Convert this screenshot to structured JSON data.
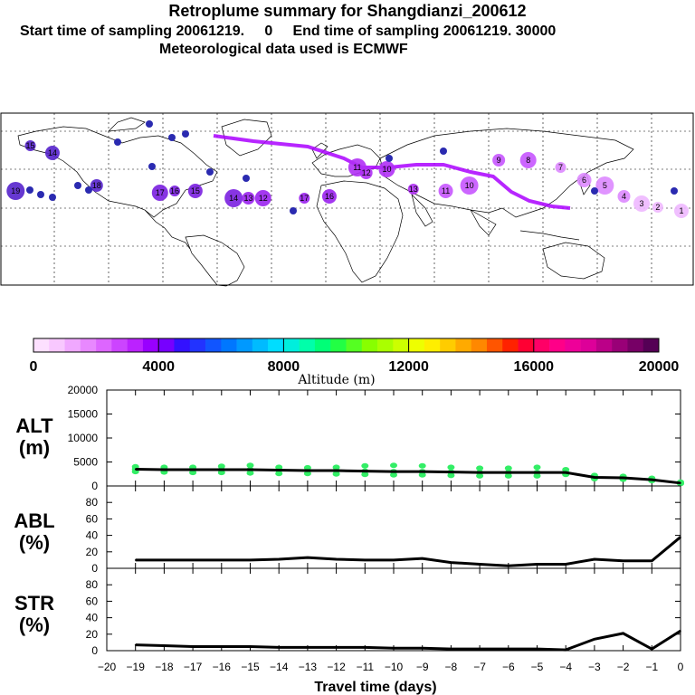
{
  "title": "Retroplume summary for Shangdianzi_200612",
  "subtitle": "Start time of sampling 20061219.     0     End time of sampling 20061219. 30000",
  "met_note": "Meteorological data used is ECMWF",
  "colors": {
    "trajectory": "#aa00ff",
    "line": "#000000",
    "alt_dots": "#33ee66"
  },
  "colorbar": {
    "ticks": [
      "0",
      "4000",
      "8000",
      "12000",
      "16000",
      "20000"
    ],
    "label": "Altitude (m)",
    "colors": [
      "#fde0ff",
      "#f8c8ff",
      "#f0a8ff",
      "#e888ff",
      "#dd66ff",
      "#cc44ff",
      "#bb22ff",
      "#9900ff",
      "#7700ff",
      "#3311ff",
      "#2233ff",
      "#1155ff",
      "#0077ff",
      "#0099ff",
      "#00bbff",
      "#00ddff",
      "#00eedd",
      "#00ffaa",
      "#00ff77",
      "#22ff44",
      "#55ff22",
      "#88ff00",
      "#aaff00",
      "#ccff00",
      "#eeff00",
      "#ffee00",
      "#ffcc00",
      "#ffaa00",
      "#ff8800",
      "#ff5500",
      "#ff2200",
      "#ff0033",
      "#ff0066",
      "#ff0088",
      "#ee0099",
      "#dd0099",
      "#bb0088",
      "#990077",
      "#770066",
      "#550055"
    ]
  },
  "chart_data": [
    {
      "type": "line",
      "panel": "ALT",
      "ylabel": "ALT\n(m)",
      "ylabel_lines": [
        "ALT",
        "(m)"
      ],
      "x": [
        -19,
        -18,
        -17,
        -16,
        -15,
        -14,
        -13,
        -12,
        -11,
        -10,
        -9,
        -8,
        -7,
        -6,
        -5,
        -4,
        -3,
        -2,
        -1,
        0
      ],
      "values": [
        3500,
        3400,
        3400,
        3400,
        3400,
        3300,
        3200,
        3200,
        3100,
        3000,
        3000,
        2900,
        2800,
        2800,
        2800,
        2800,
        1800,
        1700,
        1300,
        600
      ],
      "ylim": [
        0,
        20000
      ],
      "yticks": [
        "0",
        "5000",
        "10000",
        "15000",
        "20000"
      ],
      "scatter_spread": [
        [
          3000,
          3500,
          4000
        ],
        [
          2900,
          3400,
          3900
        ],
        [
          2800,
          3400,
          3900
        ],
        [
          2800,
          3400,
          4100
        ],
        [
          2700,
          3400,
          4300
        ],
        [
          2600,
          3300,
          3900
        ],
        [
          2600,
          3200,
          3800
        ],
        [
          2500,
          3200,
          3900
        ],
        [
          2400,
          3100,
          4200
        ],
        [
          2300,
          3000,
          4300
        ],
        [
          2300,
          3000,
          4200
        ],
        [
          2200,
          2900,
          3900
        ],
        [
          2100,
          2800,
          3700
        ],
        [
          2100,
          2800,
          3700
        ],
        [
          2100,
          2800,
          3900
        ],
        [
          2400,
          2800,
          3400
        ],
        [
          1500,
          1800,
          2200
        ],
        [
          1400,
          1700,
          2000
        ],
        [
          1100,
          1300,
          1600
        ],
        [
          500,
          600,
          800
        ]
      ]
    },
    {
      "type": "line",
      "panel": "ABL",
      "ylabel_lines": [
        "ABL",
        "(%)"
      ],
      "x": [
        -19,
        -18,
        -17,
        -16,
        -15,
        -14,
        -13,
        -12,
        -11,
        -10,
        -9,
        -8,
        -7,
        -6,
        -5,
        -4,
        -3,
        -2,
        -1,
        0
      ],
      "values": [
        10,
        10,
        10,
        10,
        10,
        11,
        13,
        11,
        10,
        10,
        12,
        7,
        5,
        3,
        5,
        5,
        11,
        9,
        9,
        38
      ],
      "ylim": [
        0,
        100
      ],
      "yticks": [
        "0",
        "20",
        "40",
        "60",
        "80"
      ]
    },
    {
      "type": "line",
      "panel": "STR",
      "ylabel_lines": [
        "STR",
        "(%)"
      ],
      "x": [
        -19,
        -18,
        -17,
        -16,
        -15,
        -14,
        -13,
        -12,
        -11,
        -10,
        -9,
        -8,
        -7,
        -6,
        -5,
        -4,
        -3,
        -2,
        -1,
        0
      ],
      "values": [
        7,
        6,
        5,
        5,
        5,
        4,
        4,
        4,
        4,
        3,
        3,
        2,
        2,
        2,
        2,
        1,
        14,
        21,
        2,
        24
      ],
      "ylim": [
        0,
        100
      ],
      "yticks": [
        "0",
        "20",
        "40",
        "60",
        "80"
      ],
      "xlabel": "Travel time (days)",
      "xticks": [
        "-20",
        "-19",
        "-18",
        "-17",
        "-16",
        "-15",
        "-14",
        "-13",
        "-12",
        "-11",
        "-10",
        "-9",
        "-8",
        "-7",
        "-6",
        "-5",
        "-4",
        "-3",
        "-2",
        "-1",
        "0"
      ]
    }
  ],
  "map": {
    "markers": [
      {
        "day": "15",
        "lon": -150,
        "lat": 62
      },
      {
        "day": "14",
        "lon": -135,
        "lat": 58
      },
      {
        "day": "19",
        "lon": -160,
        "lat": 37
      },
      {
        "day": "18",
        "lon": -105,
        "lat": 40
      },
      {
        "day": "17",
        "lon": -62,
        "lat": 36
      },
      {
        "day": "16",
        "lon": -52,
        "lat": 37
      },
      {
        "day": "15",
        "lon": -38,
        "lat": 37
      },
      {
        "day": "14",
        "lon": -12,
        "lat": 33
      },
      {
        "day": "13",
        "lon": -2,
        "lat": 33
      },
      {
        "day": "12",
        "lon": 8,
        "lat": 33
      },
      {
        "day": "17",
        "lon": 36,
        "lat": 33
      },
      {
        "day": "16",
        "lon": 53,
        "lat": 34
      },
      {
        "day": "11",
        "lon": 72,
        "lat": 50
      },
      {
        "day": "12",
        "lon": 78,
        "lat": 47
      },
      {
        "day": "10",
        "lon": 92,
        "lat": 49
      },
      {
        "day": "13",
        "lon": 110,
        "lat": 38
      },
      {
        "day": "11",
        "lon": 132,
        "lat": 37
      },
      {
        "day": "10",
        "lon": 148,
        "lat": 40
      },
      {
        "day": "9",
        "lon": 168,
        "lat": 54
      },
      {
        "day": "8",
        "lon": 188,
        "lat": 54
      },
      {
        "day": "7",
        "lon": 210,
        "lat": 50
      },
      {
        "day": "6",
        "lon": 226,
        "lat": 43
      },
      {
        "day": "5",
        "lon": 240,
        "lat": 40
      },
      {
        "day": "4",
        "lon": 253,
        "lat": 34
      },
      {
        "day": "3",
        "lon": 265,
        "lat": 30
      },
      {
        "day": "2",
        "lon": 276,
        "lat": 28
      },
      {
        "day": "1",
        "lon": 292,
        "lat": 26
      }
    ]
  }
}
